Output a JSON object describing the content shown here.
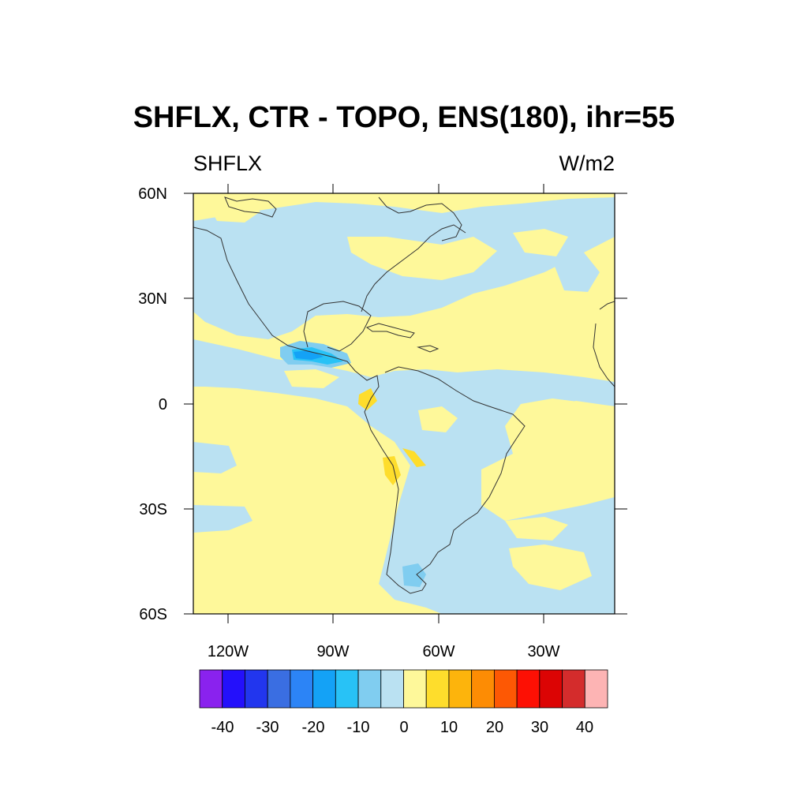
{
  "title": "SHFLX, CTR - TOPO, ENS(180), ihr=55",
  "subtitle_left": "SHFLX",
  "subtitle_right": "W/m2",
  "axes": {
    "lat_labels": [
      "60N",
      "30N",
      "0",
      "30S",
      "60S"
    ],
    "lon_labels": [
      "120W",
      "90W",
      "60W",
      "30W"
    ]
  },
  "colorbar": {
    "labels": [
      "-40",
      "-30",
      "-20",
      "-10",
      "0",
      "10",
      "20",
      "30",
      "40"
    ],
    "colors": [
      "#8a22ee",
      "#2410fb",
      "#2236ee",
      "#3a6ee2",
      "#2c84f6",
      "#14a2f6",
      "#28c2f6",
      "#80cdf0",
      "#bae1f2",
      "#fef89a",
      "#fedd2c",
      "#fdb40c",
      "#fd8c04",
      "#fd5804",
      "#fd1004",
      "#dc0404",
      "#d42c2c",
      "#fdb4b4"
    ]
  },
  "chart_data": {
    "type": "heatmap",
    "title": "SHFLX, CTR - TOPO, ENS(180), ihr=55",
    "variable": "SHFLX",
    "units": "W/m2",
    "xlim": [
      -140,
      20
    ],
    "ylim": [
      -60,
      60
    ],
    "contour_levels": [
      -40,
      -35,
      -30,
      -25,
      -20,
      -15,
      -10,
      -5,
      0,
      5,
      10,
      15,
      20,
      25,
      30,
      35,
      40
    ]
  }
}
